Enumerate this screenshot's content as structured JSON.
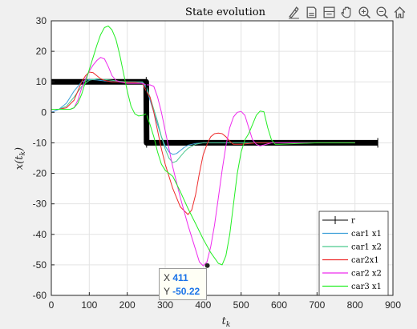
{
  "chart_data": {
    "type": "line",
    "title": "State evolution",
    "xlabel": "t_k",
    "ylabel": "x(t_k)",
    "xlim": [
      0,
      900
    ],
    "ylim": [
      -60,
      30
    ],
    "xticks": [
      "0",
      "100",
      "200",
      "300",
      "400",
      "500",
      "600",
      "700",
      "800",
      "900"
    ],
    "yticks": [
      "30",
      "20",
      "10",
      "0",
      "-10",
      "-20",
      "-30",
      "-40",
      "-50",
      "-60"
    ],
    "grid": true,
    "legend_position": "bottom-right",
    "series": [
      {
        "name": "r",
        "color": "#000000",
        "width": 7,
        "x": [
          0,
          250,
          250,
          251,
          251,
          860
        ],
        "y": [
          10,
          10,
          10,
          -10,
          -10,
          -10
        ]
      },
      {
        "name": "car1 x1",
        "color": "#3c9fd8",
        "width": 1,
        "x": [
          0,
          20,
          40,
          60,
          80,
          100,
          120,
          140,
          160,
          180,
          200,
          220,
          240,
          250,
          260,
          270,
          280,
          290,
          300,
          310,
          320,
          330,
          340,
          350,
          360,
          380,
          400,
          450,
          500,
          600,
          700,
          800
        ],
        "y": [
          0,
          1,
          3,
          7,
          10,
          10.8,
          10.6,
          10.3,
          10.1,
          10,
          10,
          10,
          9.8,
          8,
          4,
          0,
          -4,
          -8,
          -11,
          -13,
          -13.8,
          -13.5,
          -12.5,
          -11.5,
          -10.8,
          -10.2,
          -10,
          -10,
          -10,
          -10,
          -10,
          -10
        ]
      },
      {
        "name": "car1 x2",
        "color": "#4cc98e",
        "width": 1,
        "x": [
          0,
          20,
          40,
          60,
          80,
          100,
          120,
          140,
          160,
          180,
          200,
          220,
          240,
          250,
          260,
          270,
          280,
          290,
          300,
          310,
          320,
          330,
          340,
          350,
          360,
          380,
          400,
          450,
          500,
          600,
          700,
          800
        ],
        "y": [
          1,
          1,
          2,
          5,
          8.5,
          10.5,
          11,
          10.8,
          10.5,
          10.2,
          10,
          10,
          10,
          8.5,
          5,
          1,
          -3,
          -8,
          -12,
          -15,
          -16.5,
          -16,
          -14.5,
          -13,
          -11.8,
          -10.5,
          -10,
          -10,
          -10,
          -10,
          -10,
          -10
        ]
      },
      {
        "name": "car2x1",
        "color": "#ee2b2b",
        "width": 1,
        "x": [
          0,
          20,
          40,
          60,
          70,
          80,
          90,
          100,
          110,
          120,
          130,
          140,
          150,
          160,
          180,
          200,
          220,
          240,
          250,
          260,
          270,
          280,
          290,
          300,
          320,
          340,
          360,
          370,
          380,
          390,
          400,
          410,
          420,
          430,
          440,
          450,
          460,
          470,
          480,
          500,
          540,
          600,
          700,
          800
        ],
        "y": [
          1,
          1,
          1.5,
          4,
          7,
          10,
          12,
          13.2,
          13,
          12,
          11,
          10.5,
          10.2,
          10,
          10,
          9.8,
          9.8,
          9.5,
          7,
          5,
          0,
          -6,
          -12,
          -17,
          -25,
          -31,
          -33.5,
          -32,
          -27,
          -20,
          -14,
          -10.5,
          -8,
          -7,
          -6.8,
          -7,
          -8,
          -9.5,
          -10.5,
          -10.5,
          -10,
          -10,
          -10,
          -10
        ]
      },
      {
        "name": "car2 x2",
        "color": "#ee2bee",
        "width": 1,
        "x": [
          0,
          20,
          40,
          50,
          60,
          70,
          80,
          90,
          100,
          110,
          120,
          130,
          140,
          150,
          160,
          170,
          180,
          200,
          220,
          240,
          250,
          260,
          270,
          280,
          290,
          300,
          320,
          340,
          360,
          380,
          390,
          400,
          410,
          420,
          430,
          440,
          450,
          460,
          470,
          480,
          490,
          500,
          510,
          520,
          530,
          540,
          550,
          560,
          580,
          600,
          700,
          800
        ],
        "y": [
          1,
          1,
          1,
          1,
          1.5,
          4,
          8,
          11,
          13.5,
          15.5,
          17,
          18,
          17.5,
          15,
          12,
          10.5,
          10,
          9.5,
          9.5,
          9.5,
          9,
          9,
          8.5,
          5,
          0,
          -6,
          -18,
          -28,
          -37,
          -45,
          -49,
          -50.3,
          -49,
          -44,
          -37,
          -28,
          -19,
          -11,
          -5,
          -1.5,
          0,
          0.3,
          -1,
          -5,
          -9,
          -10.5,
          -11,
          -10.7,
          -10,
          -10,
          -10,
          -10
        ]
      },
      {
        "name": "car3 x1",
        "color": "#22ee22",
        "width": 1,
        "x": [
          0,
          20,
          40,
          50,
          60,
          70,
          80,
          90,
          100,
          110,
          120,
          130,
          140,
          150,
          160,
          170,
          180,
          190,
          200,
          210,
          220,
          230,
          240,
          250,
          260,
          270,
          280,
          290,
          300,
          320,
          340,
          360,
          380,
          400,
          420,
          440,
          450,
          460,
          470,
          480,
          490,
          500,
          510,
          520,
          530,
          540,
          550,
          560,
          570,
          580,
          590,
          600,
          700,
          800
        ],
        "y": [
          1,
          1,
          1,
          1,
          1.5,
          3,
          6,
          10,
          14,
          18,
          22,
          25.5,
          27.8,
          28.3,
          27,
          24,
          19,
          13,
          7,
          2,
          -0.5,
          -1.2,
          -1,
          -0.5,
          -4,
          -8,
          -13,
          -17,
          -19,
          -21,
          -26,
          -31.5,
          -36.5,
          -41.5,
          -46,
          -49.5,
          -50,
          -47,
          -40,
          -30,
          -20,
          -13,
          -9,
          -7,
          -4,
          -1,
          0.4,
          0.2,
          -5,
          -9,
          -10.5,
          -10.5,
          -10,
          -10
        ]
      }
    ],
    "datatip": {
      "x_label": "X",
      "x_value": "411",
      "y_label": "Y",
      "y_value": "-50.22",
      "x": 411,
      "y": -50.22
    }
  },
  "toolbar": {
    "icons": [
      "brush-icon",
      "save-icon",
      "datatip-icon",
      "pan-icon",
      "zoom-in-icon",
      "zoom-out-icon",
      "home-icon"
    ]
  }
}
